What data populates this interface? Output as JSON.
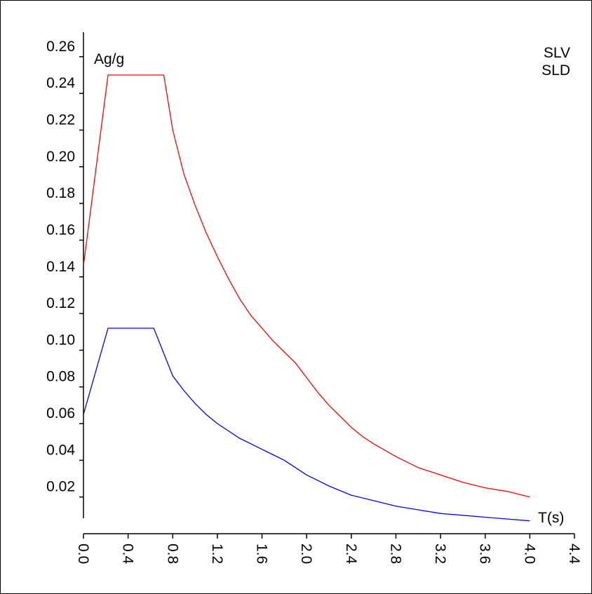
{
  "chart_data": {
    "type": "line",
    "title": "",
    "ylabel": "Ag/g",
    "xlabel": "T(s)",
    "xlim": [
      0,
      4.4
    ],
    "ylim": [
      0,
      0.26
    ],
    "x_ticks": [
      "0.0",
      "0.4",
      "0.8",
      "1.2",
      "1.6",
      "2.0",
      "2.4",
      "2.8",
      "3.2",
      "3.6",
      "4.0",
      "4.4"
    ],
    "y_ticks": [
      "0.02",
      "0.04",
      "0.06",
      "0.08",
      "0.10",
      "0.12",
      "0.14",
      "0.16",
      "0.18",
      "0.20",
      "0.22",
      "0.24",
      "0.26"
    ],
    "grid": false,
    "legend_position": "top-right",
    "series": [
      {
        "name": "SLV",
        "color": "#ff0000",
        "points": [
          [
            0.0,
            0.146
          ],
          [
            0.22,
            0.25
          ],
          [
            0.72,
            0.25
          ],
          [
            0.8,
            0.22
          ],
          [
            0.9,
            0.196
          ],
          [
            1.0,
            0.179
          ],
          [
            1.1,
            0.164
          ],
          [
            1.2,
            0.151
          ],
          [
            1.3,
            0.139
          ],
          [
            1.4,
            0.128
          ],
          [
            1.5,
            0.119
          ],
          [
            1.6,
            0.112
          ],
          [
            1.7,
            0.105
          ],
          [
            1.8,
            0.099
          ],
          [
            1.9,
            0.093
          ],
          [
            2.0,
            0.085
          ],
          [
            2.1,
            0.077
          ],
          [
            2.2,
            0.07
          ],
          [
            2.3,
            0.064
          ],
          [
            2.4,
            0.058
          ],
          [
            2.5,
            0.053
          ],
          [
            2.6,
            0.049
          ],
          [
            2.8,
            0.042
          ],
          [
            3.0,
            0.036
          ],
          [
            3.2,
            0.032
          ],
          [
            3.4,
            0.028
          ],
          [
            3.6,
            0.025
          ],
          [
            3.8,
            0.023
          ],
          [
            4.0,
            0.02
          ]
        ]
      },
      {
        "name": "SLD",
        "color": "#0000ff",
        "points": [
          [
            0.0,
            0.065
          ],
          [
            0.22,
            0.112
          ],
          [
            0.63,
            0.112
          ],
          [
            0.8,
            0.086
          ],
          [
            0.9,
            0.078
          ],
          [
            1.0,
            0.071
          ],
          [
            1.1,
            0.065
          ],
          [
            1.2,
            0.06
          ],
          [
            1.3,
            0.056
          ],
          [
            1.4,
            0.052
          ],
          [
            1.5,
            0.049
          ],
          [
            1.6,
            0.046
          ],
          [
            1.7,
            0.043
          ],
          [
            1.8,
            0.04
          ],
          [
            1.9,
            0.036
          ],
          [
            2.0,
            0.032
          ],
          [
            2.1,
            0.029
          ],
          [
            2.2,
            0.026
          ],
          [
            2.4,
            0.021
          ],
          [
            2.6,
            0.018
          ],
          [
            2.8,
            0.015
          ],
          [
            3.0,
            0.013
          ],
          [
            3.2,
            0.011
          ],
          [
            3.4,
            0.01
          ],
          [
            3.6,
            0.009
          ],
          [
            3.8,
            0.008
          ],
          [
            4.0,
            0.007
          ]
        ]
      }
    ]
  }
}
